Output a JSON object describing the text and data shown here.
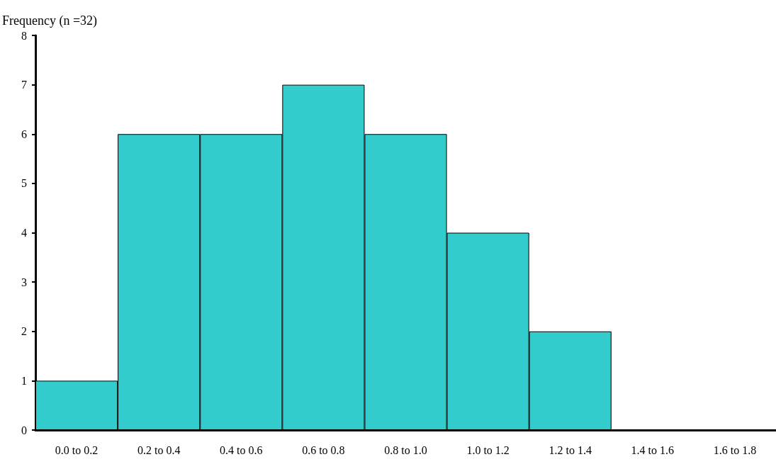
{
  "chart_data": {
    "type": "bar",
    "ylabel": "Frequency (n =32)",
    "categories": [
      "0.0 to 0.2",
      "0.2 to 0.4",
      "0.4 to 0.6",
      "0.6 to 0.8",
      "0.8 to 1.0",
      "1.0 to 1.2",
      "1.2 to 1.4",
      "1.4 to 1.6",
      "1.6 to 1.8"
    ],
    "values": [
      1,
      6,
      6,
      7,
      6,
      4,
      2,
      0,
      0
    ],
    "color": "#33cccc",
    "ylim": [
      0,
      8
    ],
    "yticks": [
      0,
      1,
      2,
      3,
      4,
      5,
      6,
      7,
      8
    ],
    "grid": false
  }
}
